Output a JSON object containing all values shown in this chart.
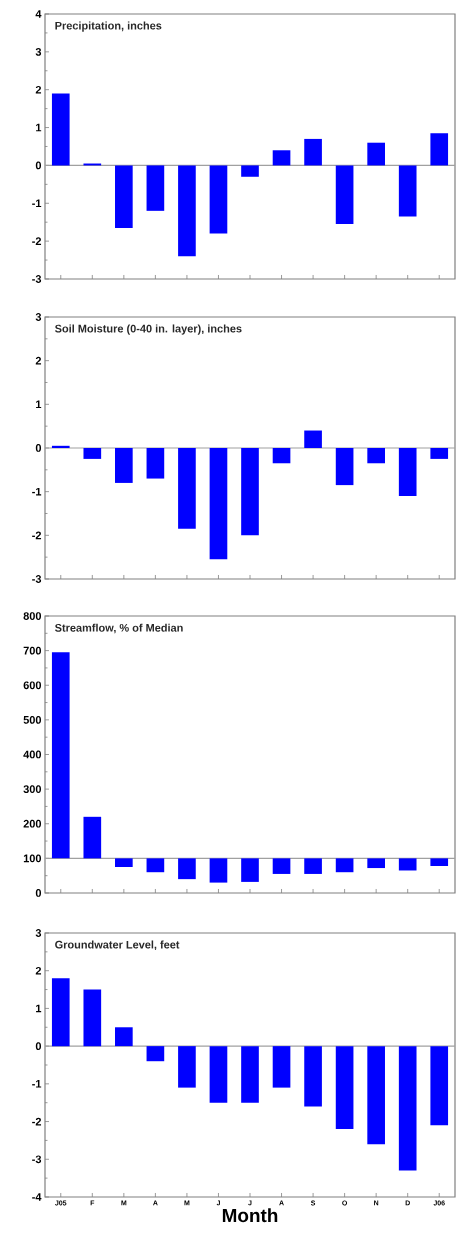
{
  "chart_data": [
    {
      "type": "bar",
      "title": "Precipitation, inches",
      "categories": [
        null,
        null,
        null,
        null,
        null,
        null,
        null,
        null,
        null,
        null,
        null,
        null,
        null
      ],
      "values": [
        1.9,
        0.05,
        -1.65,
        -1.2,
        -2.4,
        -1.8,
        -0.3,
        0.4,
        0.7,
        -1.55,
        0.6,
        -1.35,
        0.85
      ],
      "color": "#0000ff",
      "ylim": [
        -3,
        4
      ],
      "yticks": [
        -3,
        -2,
        -1,
        0,
        1,
        2,
        3,
        4
      ],
      "tick_labels": "y"
    },
    {
      "type": "bar",
      "title": "Soil Moisture (0-40 in. layer), inches",
      "categories": [
        null,
        null,
        null,
        null,
        null,
        null,
        null,
        null,
        null,
        null,
        null,
        null,
        null
      ],
      "values": [
        0.05,
        -0.25,
        -0.8,
        -0.7,
        -1.85,
        -2.55,
        -2.0,
        -0.35,
        0.4,
        -0.85,
        -0.35,
        -1.1,
        -0.25
      ],
      "color": "#0000ff",
      "ylim": [
        -3,
        3
      ],
      "yticks": [
        -3,
        -2,
        -1,
        0,
        1,
        2,
        3
      ],
      "tick_labels": "y"
    },
    {
      "type": "bar",
      "title": "Streamflow,  % of Median",
      "categories": [
        null,
        null,
        null,
        null,
        null,
        null,
        null,
        null,
        null,
        null,
        null,
        null,
        null
      ],
      "base": [
        100,
        100,
        100,
        100,
        100,
        100,
        100,
        100,
        100,
        100,
        100,
        100,
        100
      ],
      "values": [
        595,
        120,
        -25,
        -40,
        -60,
        -70,
        -68,
        -45,
        -45,
        -40,
        -28,
        -35,
        -22
      ],
      "color": "#0000ff",
      "ylim": [
        0,
        800
      ],
      "yticks": [
        0,
        100,
        200,
        300,
        400,
        500,
        600,
        700,
        800
      ],
      "tick_labels": "y",
      "ref_lines": [
        {
          "axis": "y",
          "value": 100,
          "color": "#a0a0a0"
        }
      ]
    },
    {
      "type": "bar",
      "title": "Groundwater Level, feet",
      "xlabel": "Month",
      "categories": [
        "J05",
        "F",
        "M",
        "A",
        "M",
        "J",
        "J",
        "A",
        "S",
        "O",
        "N",
        "D",
        "J06"
      ],
      "values": [
        1.8,
        1.5,
        0.5,
        -0.4,
        -1.1,
        -1.5,
        -1.5,
        -1.1,
        -1.6,
        -2.2,
        -2.6,
        -3.3,
        -2.1
      ],
      "color": "#0000ff",
      "ylim": [
        -4,
        3
      ],
      "yticks": [
        -4,
        -3,
        -2,
        -1,
        0,
        1,
        2,
        3
      ]
    }
  ]
}
